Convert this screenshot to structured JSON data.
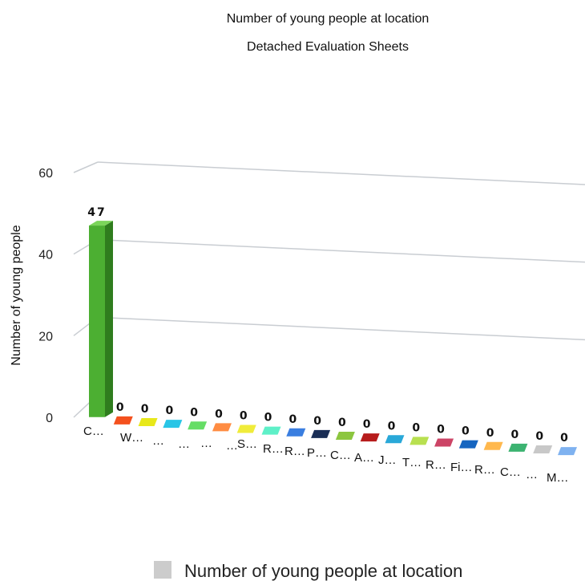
{
  "chart_data": {
    "type": "bar",
    "title": "Number of young people at location",
    "subtitle": "Detached Evaluation Sheets",
    "ylabel": "Number of young people",
    "ylim": [
      0,
      60
    ],
    "yticks": [
      "0",
      "20",
      "40",
      "60"
    ],
    "categories": [
      "C…",
      "W…",
      "…",
      "…",
      "…",
      "…",
      "S…",
      "R…",
      "R…",
      "P…",
      "C…",
      "A…",
      "J…",
      "T…",
      "R…",
      "Fi…",
      "R…",
      "C…",
      "…",
      "M…"
    ],
    "values": [
      47,
      0,
      0,
      0,
      0,
      0,
      0,
      0,
      0,
      0,
      0,
      0,
      0,
      0,
      0,
      0,
      0,
      0,
      0,
      0
    ],
    "value_labels": [
      "47",
      "0",
      "0",
      "0",
      "0",
      "0",
      "0",
      "0",
      "0",
      "0",
      "0",
      "0",
      "0",
      "0",
      "0",
      "0",
      "0",
      "0",
      "0",
      "0"
    ],
    "colors": [
      "#4caf32",
      "#f4511e",
      "#e8e81a",
      "#29c5e6",
      "#66dd66",
      "#ff8c42",
      "#f0ec3a",
      "#5ef0c8",
      "#3a7ee0",
      "#1a2e55",
      "#8cc63f",
      "#b71c1c",
      "#29a8d8",
      "#b8e050",
      "#cc4466",
      "#1565c0",
      "#ffb84d",
      "#3cb371",
      "#c8c8c8",
      "#7fb2f0",
      "#4caf32"
    ],
    "legend": [
      {
        "label": "Number of young people at location",
        "color": "#cccccc"
      }
    ],
    "legend_position": "bottom",
    "grid": true
  }
}
